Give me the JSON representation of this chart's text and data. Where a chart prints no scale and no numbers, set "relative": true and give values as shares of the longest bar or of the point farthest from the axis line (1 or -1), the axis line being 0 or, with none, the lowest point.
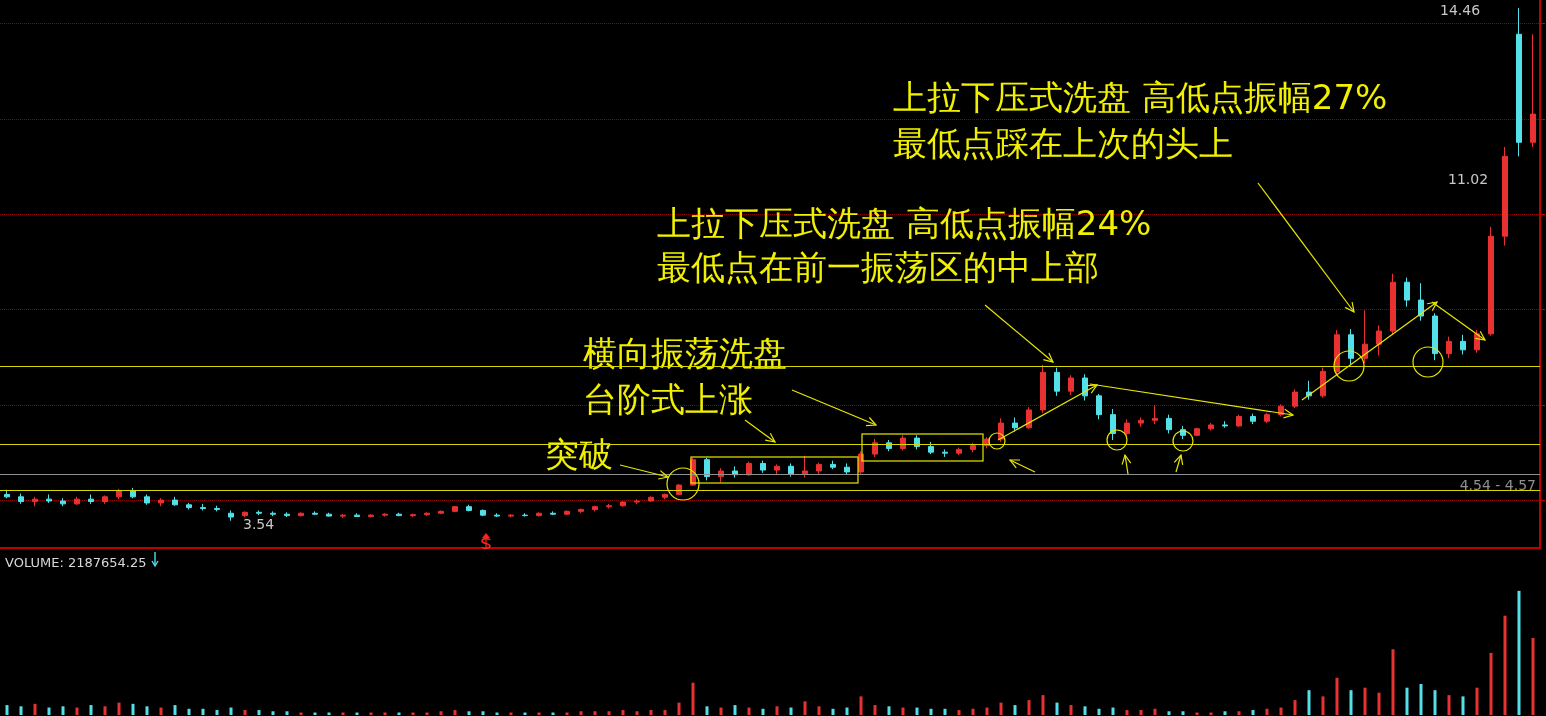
{
  "chart_data": [
    {
      "type": "candlestick",
      "categories": [
        null,
        null,
        null,
        null,
        null,
        null,
        null,
        null,
        null,
        null,
        null,
        null,
        null,
        null,
        null,
        null,
        null,
        null,
        null,
        null,
        null,
        null,
        null,
        null,
        null,
        null,
        null,
        null,
        null,
        null,
        null,
        null,
        null,
        null,
        null,
        null,
        null,
        null,
        null,
        null,
        null,
        null,
        null,
        null,
        null,
        null,
        null,
        null,
        null,
        null,
        null,
        null,
        null,
        null,
        null,
        null,
        null,
        null,
        null,
        null,
        null,
        null,
        null,
        null,
        null,
        null,
        null,
        null,
        null,
        null,
        null,
        null,
        null,
        null,
        null,
        null,
        null,
        null,
        null,
        null,
        null,
        null,
        null,
        null,
        null,
        null,
        null,
        null,
        null,
        null,
        null,
        null,
        null,
        null,
        null,
        null,
        null,
        null,
        null,
        null,
        null,
        null,
        null,
        null,
        null,
        null,
        null,
        null,
        null,
        null
      ],
      "ohlc": [
        [
          4.1,
          4.2,
          4.02,
          4.05
        ],
        [
          4.05,
          4.12,
          3.9,
          3.95
        ],
        [
          3.95,
          4.05,
          3.85,
          4.0
        ],
        [
          4.0,
          4.1,
          3.92,
          3.96
        ],
        [
          3.96,
          4.02,
          3.85,
          3.9
        ],
        [
          3.9,
          4.05,
          3.88,
          4.0
        ],
        [
          4.0,
          4.1,
          3.9,
          3.95
        ],
        [
          3.95,
          4.08,
          3.9,
          4.05
        ],
        [
          4.05,
          4.22,
          4.0,
          4.18
        ],
        [
          4.18,
          4.24,
          4.02,
          4.05
        ],
        [
          4.05,
          4.1,
          3.88,
          3.92
        ],
        [
          3.92,
          4.02,
          3.85,
          3.98
        ],
        [
          3.98,
          4.05,
          3.86,
          3.88
        ],
        [
          3.88,
          3.92,
          3.78,
          3.82
        ],
        [
          3.82,
          3.9,
          3.76,
          3.8
        ],
        [
          3.8,
          3.86,
          3.74,
          3.78
        ],
        [
          3.7,
          3.76,
          3.54,
          3.62
        ],
        [
          3.65,
          3.74,
          3.62,
          3.72
        ],
        [
          3.72,
          3.76,
          3.66,
          3.7
        ],
        [
          3.7,
          3.74,
          3.64,
          3.68
        ],
        [
          3.68,
          3.72,
          3.62,
          3.65
        ],
        [
          3.65,
          3.72,
          3.63,
          3.7
        ],
        [
          3.7,
          3.74,
          3.66,
          3.68
        ],
        [
          3.68,
          3.71,
          3.63,
          3.64
        ],
        [
          3.64,
          3.68,
          3.6,
          3.66
        ],
        [
          3.66,
          3.7,
          3.62,
          3.63
        ],
        [
          3.63,
          3.68,
          3.61,
          3.66
        ],
        [
          3.66,
          3.7,
          3.63,
          3.68
        ],
        [
          3.68,
          3.71,
          3.64,
          3.65
        ],
        [
          3.65,
          3.69,
          3.62,
          3.67
        ],
        [
          3.67,
          3.72,
          3.64,
          3.7
        ],
        [
          3.7,
          3.76,
          3.68,
          3.74
        ],
        [
          3.74,
          3.86,
          3.72,
          3.84
        ],
        [
          3.84,
          3.88,
          3.74,
          3.76
        ],
        [
          3.76,
          3.78,
          3.64,
          3.66
        ],
        [
          3.66,
          3.7,
          3.62,
          3.64
        ],
        [
          3.64,
          3.68,
          3.61,
          3.66
        ],
        [
          3.66,
          3.7,
          3.63,
          3.65
        ],
        [
          3.65,
          3.72,
          3.63,
          3.7
        ],
        [
          3.7,
          3.74,
          3.66,
          3.68
        ],
        [
          3.68,
          3.76,
          3.66,
          3.74
        ],
        [
          3.74,
          3.8,
          3.7,
          3.78
        ],
        [
          3.78,
          3.86,
          3.74,
          3.84
        ],
        [
          3.84,
          3.9,
          3.8,
          3.86
        ],
        [
          3.86,
          3.96,
          3.84,
          3.94
        ],
        [
          3.94,
          4.0,
          3.9,
          3.96
        ],
        [
          3.96,
          4.06,
          3.94,
          4.04
        ],
        [
          4.04,
          4.12,
          4.0,
          4.1
        ],
        [
          4.1,
          4.32,
          4.08,
          4.3
        ],
        [
          4.3,
          4.88,
          4.28,
          4.84
        ],
        [
          4.84,
          4.88,
          4.4,
          4.48
        ],
        [
          4.48,
          4.66,
          4.36,
          4.6
        ],
        [
          4.6,
          4.7,
          4.46,
          4.52
        ],
        [
          4.52,
          4.8,
          4.5,
          4.76
        ],
        [
          4.76,
          4.82,
          4.56,
          4.62
        ],
        [
          4.62,
          4.74,
          4.52,
          4.7
        ],
        [
          4.7,
          4.76,
          4.48,
          4.54
        ],
        [
          4.54,
          4.92,
          4.46,
          4.6
        ],
        [
          4.6,
          4.78,
          4.54,
          4.74
        ],
        [
          4.74,
          4.82,
          4.64,
          4.68
        ],
        [
          4.68,
          4.76,
          4.52,
          4.58
        ],
        [
          4.58,
          5.02,
          4.54,
          4.96
        ],
        [
          4.96,
          5.28,
          4.9,
          5.2
        ],
        [
          5.2,
          5.26,
          5.02,
          5.08
        ],
        [
          5.08,
          5.36,
          5.04,
          5.3
        ],
        [
          5.3,
          5.36,
          5.06,
          5.12
        ],
        [
          5.12,
          5.22,
          4.96,
          5.0
        ],
        [
          5.0,
          5.06,
          4.9,
          4.98
        ],
        [
          4.98,
          5.1,
          4.94,
          5.06
        ],
        [
          5.06,
          5.2,
          5.0,
          5.14
        ],
        [
          5.14,
          5.32,
          5.08,
          5.28
        ],
        [
          5.28,
          5.72,
          5.22,
          5.62
        ],
        [
          5.62,
          5.74,
          5.44,
          5.52
        ],
        [
          5.52,
          5.96,
          5.5,
          5.9
        ],
        [
          5.9,
          6.86,
          5.84,
          6.7
        ],
        [
          6.7,
          6.8,
          6.2,
          6.3
        ],
        [
          6.3,
          6.64,
          6.22,
          6.58
        ],
        [
          6.58,
          6.66,
          6.1,
          6.2
        ],
        [
          6.2,
          6.24,
          5.7,
          5.8
        ],
        [
          5.8,
          5.92,
          5.26,
          5.4
        ],
        [
          5.4,
          5.7,
          5.36,
          5.62
        ],
        [
          5.62,
          5.74,
          5.54,
          5.68
        ],
        [
          5.68,
          6.0,
          5.6,
          5.72
        ],
        [
          5.72,
          5.8,
          5.4,
          5.48
        ],
        [
          5.48,
          5.56,
          5.28,
          5.36
        ],
        [
          5.36,
          5.52,
          5.34,
          5.5
        ],
        [
          5.5,
          5.62,
          5.46,
          5.58
        ],
        [
          5.58,
          5.66,
          5.52,
          5.56
        ],
        [
          5.56,
          5.8,
          5.54,
          5.76
        ],
        [
          5.76,
          5.82,
          5.6,
          5.66
        ],
        [
          5.66,
          5.84,
          5.62,
          5.8
        ],
        [
          5.8,
          6.02,
          5.76,
          5.98
        ],
        [
          5.98,
          6.34,
          5.94,
          6.28
        ],
        [
          6.28,
          6.52,
          6.12,
          6.2
        ],
        [
          6.2,
          6.8,
          6.16,
          6.72
        ],
        [
          6.72,
          7.6,
          6.66,
          7.5
        ],
        [
          7.5,
          7.62,
          6.86,
          7.0
        ],
        [
          7.0,
          8.02,
          6.9,
          7.3
        ],
        [
          7.3,
          7.7,
          7.06,
          7.58
        ],
        [
          7.58,
          8.8,
          7.5,
          8.62
        ],
        [
          8.62,
          8.72,
          8.1,
          8.24
        ],
        [
          8.24,
          8.6,
          7.8,
          7.9
        ],
        [
          7.9,
          7.96,
          6.96,
          7.1
        ],
        [
          7.1,
          7.46,
          7.0,
          7.36
        ],
        [
          7.36,
          7.5,
          7.08,
          7.18
        ],
        [
          7.18,
          7.6,
          7.12,
          7.52
        ],
        [
          7.52,
          9.8,
          7.48,
          9.6
        ],
        [
          9.6,
          11.5,
          9.4,
          11.3
        ],
        [
          13.9,
          14.46,
          11.3,
          11.6
        ],
        [
          11.6,
          13.9,
          11.5,
          12.2
        ]
      ],
      "colors": [
        "#54e0e8",
        "#54e0e8",
        "#e83232",
        "#54e0e8",
        "#54e0e8",
        "#e83232",
        "#54e0e8",
        "#e83232",
        "#e83232",
        "#54e0e8",
        "#54e0e8",
        "#e83232",
        "#54e0e8",
        "#54e0e8",
        "#54e0e8",
        "#54e0e8",
        "#54e0e8",
        "#e83232",
        "#54e0e8",
        "#54e0e8",
        "#54e0e8",
        "#e83232",
        "#54e0e8",
        "#54e0e8",
        "#e83232",
        "#54e0e8",
        "#e83232",
        "#e83232",
        "#54e0e8",
        "#e83232",
        "#e83232",
        "#e83232",
        "#e83232",
        "#54e0e8",
        "#54e0e8",
        "#54e0e8",
        "#e83232",
        "#54e0e8",
        "#e83232",
        "#54e0e8",
        "#e83232",
        "#e83232",
        "#e83232",
        "#e83232",
        "#e83232",
        "#e83232",
        "#e83232",
        "#e83232",
        "#e83232",
        "#e83232",
        "#54e0e8",
        "#e83232",
        "#54e0e8",
        "#e83232",
        "#54e0e8",
        "#e83232",
        "#54e0e8",
        "#e83232",
        "#e83232",
        "#54e0e8",
        "#54e0e8",
        "#e83232",
        "#e83232",
        "#54e0e8",
        "#e83232",
        "#54e0e8",
        "#54e0e8",
        "#54e0e8",
        "#e83232",
        "#e83232",
        "#e83232",
        "#e83232",
        "#54e0e8",
        "#e83232",
        "#e83232",
        "#54e0e8",
        "#e83232",
        "#54e0e8",
        "#54e0e8",
        "#54e0e8",
        "#e83232",
        "#e83232",
        "#e83232",
        "#54e0e8",
        "#54e0e8",
        "#e83232",
        "#e83232",
        "#54e0e8",
        "#e83232",
        "#54e0e8",
        "#e83232",
        "#e83232",
        "#e83232",
        "#54e0e8",
        "#e83232",
        "#e83232",
        "#54e0e8",
        "#e83232",
        "#e83232",
        "#e83232",
        "#54e0e8",
        "#54e0e8",
        "#54e0e8",
        "#e83232",
        "#54e0e8",
        "#e83232",
        "#e83232",
        "#e83232",
        "#54e0e8",
        "#e83232"
      ],
      "ylim": [
        2.96,
        14.63
      ],
      "yticks": [
        {
          "value": 3.98,
          "label": null
        },
        {
          "value": 6.01,
          "label": null
        },
        {
          "value": 8.04,
          "label": null
        },
        {
          "value": 10.07,
          "label": null
        },
        {
          "value": 12.1,
          "label": null
        },
        {
          "value": 14.13,
          "label": null
        }
      ],
      "grid": "y",
      "tick_labels": false,
      "ref_lines": [
        {
          "axis": "y",
          "value": 4.2,
          "color": "#d8d800"
        },
        {
          "axis": "y",
          "value": 5.18,
          "color": "#d8d800"
        },
        {
          "axis": "y",
          "value": 6.82,
          "color": "#d8d800"
        },
        {
          "axis": "y",
          "value": 4.54,
          "label": "4.54 - 4.57",
          "color": "#909090"
        }
      ],
      "annotations": [
        "突破",
        "横向振荡洗盘",
        "台阶式上涨",
        "上拉下压式洗盘 高低点振幅24%",
        "最低点在前一振荡区的中上部",
        "上拉下压式洗盘 高低点振幅27%",
        "最低点踩在上次的头上",
        "14.46",
        "3.54",
        "11.02"
      ]
    },
    {
      "type": "bar",
      "relative": true,
      "title": "VOLUME: 2187654.25",
      "categories": [
        null,
        null,
        null,
        null,
        null,
        null,
        null,
        null,
        null,
        null,
        null,
        null,
        null,
        null,
        null,
        null,
        null,
        null,
        null,
        null,
        null,
        null,
        null,
        null,
        null,
        null,
        null,
        null,
        null,
        null,
        null,
        null,
        null,
        null,
        null,
        null,
        null,
        null,
        null,
        null,
        null,
        null,
        null,
        null,
        null,
        null,
        null,
        null,
        null,
        null,
        null,
        null,
        null,
        null,
        null,
        null,
        null,
        null,
        null,
        null,
        null,
        null,
        null,
        null,
        null,
        null,
        null,
        null,
        null,
        null,
        null,
        null,
        null,
        null,
        null,
        null,
        null,
        null,
        null,
        null,
        null,
        null,
        null,
        null,
        null,
        null,
        null,
        null,
        null,
        null,
        null,
        null,
        null,
        null,
        null,
        null,
        null,
        null,
        null,
        null,
        null,
        null,
        null,
        null,
        null,
        null,
        null,
        null,
        null,
        null
      ],
      "values": [
        0.08,
        0.07,
        0.09,
        0.06,
        0.07,
        0.06,
        0.08,
        0.07,
        0.1,
        0.09,
        0.07,
        0.06,
        0.08,
        0.05,
        0.05,
        0.04,
        0.06,
        0.04,
        0.04,
        0.03,
        0.03,
        0.02,
        0.02,
        0.02,
        0.02,
        0.02,
        0.02,
        0.02,
        0.02,
        0.02,
        0.02,
        0.03,
        0.04,
        0.03,
        0.03,
        0.02,
        0.02,
        0.02,
        0.02,
        0.02,
        0.02,
        0.03,
        0.03,
        0.03,
        0.04,
        0.03,
        0.04,
        0.04,
        0.1,
        0.26,
        0.07,
        0.06,
        0.08,
        0.06,
        0.05,
        0.07,
        0.06,
        0.11,
        0.07,
        0.05,
        0.06,
        0.15,
        0.08,
        0.07,
        0.06,
        0.06,
        0.05,
        0.05,
        0.04,
        0.05,
        0.06,
        0.1,
        0.08,
        0.12,
        0.16,
        0.1,
        0.08,
        0.07,
        0.05,
        0.06,
        0.04,
        0.04,
        0.05,
        0.03,
        0.03,
        0.02,
        0.02,
        0.03,
        0.03,
        0.04,
        0.05,
        0.06,
        0.12,
        0.2,
        0.15,
        0.3,
        0.2,
        0.22,
        0.18,
        0.53,
        0.22,
        0.25,
        0.2,
        0.16,
        0.15,
        0.22,
        0.5,
        0.8,
        1,
        0.62
      ],
      "colors": [
        "#54e0e8",
        "#54e0e8",
        "#e83232",
        "#54e0e8",
        "#54e0e8",
        "#e83232",
        "#54e0e8",
        "#e83232",
        "#e83232",
        "#54e0e8",
        "#54e0e8",
        "#e83232",
        "#54e0e8",
        "#54e0e8",
        "#54e0e8",
        "#54e0e8",
        "#54e0e8",
        "#e83232",
        "#54e0e8",
        "#54e0e8",
        "#54e0e8",
        "#e83232",
        "#54e0e8",
        "#54e0e8",
        "#e83232",
        "#54e0e8",
        "#e83232",
        "#e83232",
        "#54e0e8",
        "#e83232",
        "#e83232",
        "#e83232",
        "#e83232",
        "#54e0e8",
        "#54e0e8",
        "#54e0e8",
        "#e83232",
        "#54e0e8",
        "#e83232",
        "#54e0e8",
        "#e83232",
        "#e83232",
        "#e83232",
        "#e83232",
        "#e83232",
        "#e83232",
        "#e83232",
        "#e83232",
        "#e83232",
        "#e83232",
        "#54e0e8",
        "#e83232",
        "#54e0e8",
        "#e83232",
        "#54e0e8",
        "#e83232",
        "#54e0e8",
        "#e83232",
        "#e83232",
        "#54e0e8",
        "#54e0e8",
        "#e83232",
        "#e83232",
        "#54e0e8",
        "#e83232",
        "#54e0e8",
        "#54e0e8",
        "#54e0e8",
        "#e83232",
        "#e83232",
        "#e83232",
        "#e83232",
        "#54e0e8",
        "#e83232",
        "#e83232",
        "#54e0e8",
        "#e83232",
        "#54e0e8",
        "#54e0e8",
        "#54e0e8",
        "#e83232",
        "#e83232",
        "#e83232",
        "#54e0e8",
        "#54e0e8",
        "#e83232",
        "#e83232",
        "#54e0e8",
        "#e83232",
        "#54e0e8",
        "#e83232",
        "#e83232",
        "#e83232",
        "#54e0e8",
        "#e83232",
        "#e83232",
        "#54e0e8",
        "#e83232",
        "#e83232",
        "#e83232",
        "#54e0e8",
        "#54e0e8",
        "#54e0e8",
        "#e83232",
        "#54e0e8",
        "#e83232",
        "#e83232",
        "#e83232",
        "#54e0e8",
        "#e83232"
      ],
      "tick_labels": false
    }
  ]
}
